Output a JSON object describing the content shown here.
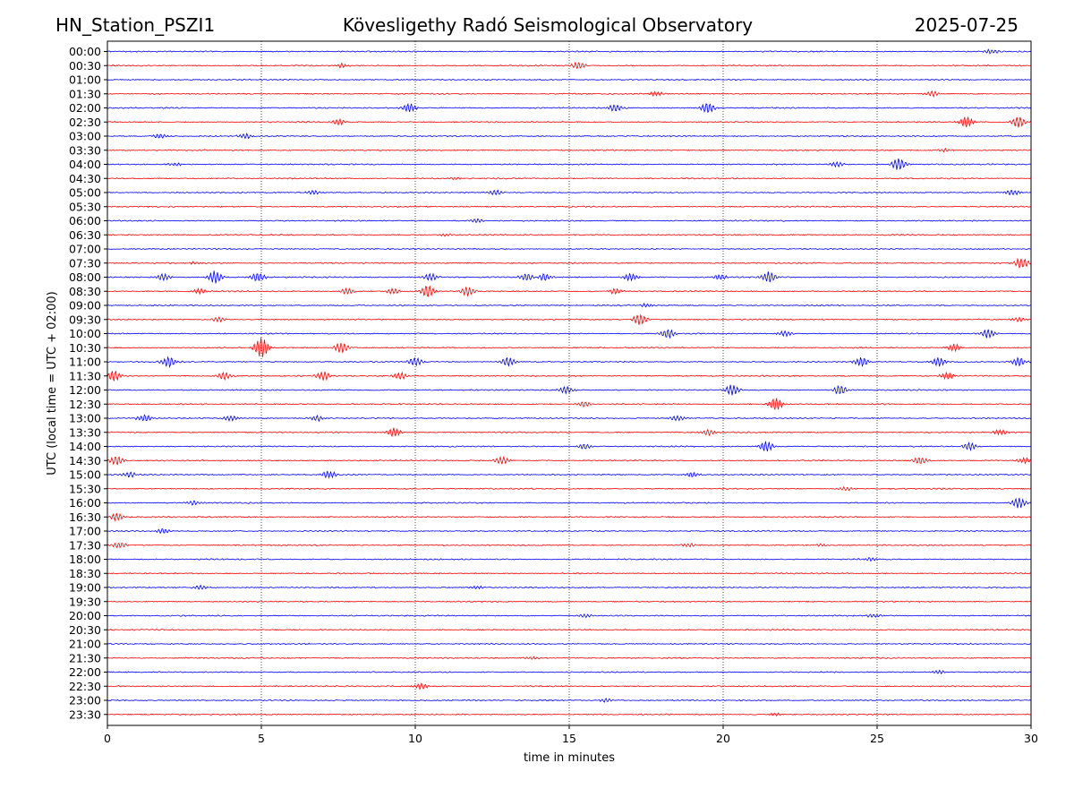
{
  "header": {
    "station": "HN_Station_PSZI1",
    "observatory": "Kövesligethy Radó Seismological Observatory",
    "date": "2025-07-25"
  },
  "chart_data": {
    "type": "line",
    "title": "Kövesligethy Radó Seismological Observatory",
    "xlabel": "time in minutes",
    "ylabel": "UTC (local time = UTC + 02:00)",
    "xlim": [
      0,
      30
    ],
    "x_ticks": [
      "0",
      "5",
      "10",
      "15",
      "20",
      "25",
      "30"
    ],
    "y_ticks": [
      "00:00",
      "00:30",
      "01:00",
      "01:30",
      "02:00",
      "02:30",
      "03:00",
      "03:30",
      "04:00",
      "04:30",
      "05:00",
      "05:30",
      "06:00",
      "06:30",
      "07:00",
      "07:30",
      "08:00",
      "08:30",
      "09:00",
      "09:30",
      "10:00",
      "10:30",
      "11:00",
      "11:30",
      "12:00",
      "12:30",
      "13:00",
      "13:30",
      "14:00",
      "14:30",
      "15:00",
      "15:30",
      "16:00",
      "16:30",
      "17:00",
      "17:30",
      "18:00",
      "18:30",
      "19:00",
      "19:30",
      "20:00",
      "20:30",
      "21:00",
      "21:30",
      "22:00",
      "22:30",
      "23:00",
      "23:30"
    ],
    "grid": "vertical dotted at 5-minute ticks",
    "colors": {
      "even_rows": "#0000ff",
      "odd_rows": "#ff0000"
    },
    "bursts": [
      {
        "row": "00:00",
        "t": 28.7,
        "a": 2.5
      },
      {
        "row": "00:30",
        "t": 15.3,
        "a": 4
      },
      {
        "row": "00:30",
        "t": 7.6,
        "a": 2
      },
      {
        "row": "01:30",
        "t": 26.8,
        "a": 3
      },
      {
        "row": "01:30",
        "t": 17.8,
        "a": 2.5
      },
      {
        "row": "02:00",
        "t": 9.8,
        "a": 5
      },
      {
        "row": "02:00",
        "t": 16.5,
        "a": 4
      },
      {
        "row": "02:00",
        "t": 19.5,
        "a": 6
      },
      {
        "row": "02:30",
        "t": 27.9,
        "a": 6
      },
      {
        "row": "02:30",
        "t": 29.6,
        "a": 6
      },
      {
        "row": "02:30",
        "t": 7.5,
        "a": 3
      },
      {
        "row": "03:00",
        "t": 1.7,
        "a": 2.5
      },
      {
        "row": "03:00",
        "t": 4.5,
        "a": 2.5
      },
      {
        "row": "03:30",
        "t": 27.2,
        "a": 1.5
      },
      {
        "row": "04:00",
        "t": 25.7,
        "a": 7
      },
      {
        "row": "04:00",
        "t": 23.7,
        "a": 3
      },
      {
        "row": "04:00",
        "t": 2.2,
        "a": 1.5
      },
      {
        "row": "04:30",
        "t": 11.3,
        "a": 1.5
      },
      {
        "row": "05:00",
        "t": 6.7,
        "a": 2.5
      },
      {
        "row": "05:00",
        "t": 12.6,
        "a": 3
      },
      {
        "row": "05:00",
        "t": 29.4,
        "a": 3
      },
      {
        "row": "06:00",
        "t": 12.0,
        "a": 2.5
      },
      {
        "row": "06:30",
        "t": 11.0,
        "a": 1.5
      },
      {
        "row": "07:30",
        "t": 29.7,
        "a": 6
      },
      {
        "row": "07:30",
        "t": 2.8,
        "a": 1.5
      },
      {
        "row": "08:00",
        "t": 3.5,
        "a": 7
      },
      {
        "row": "08:00",
        "t": 1.8,
        "a": 4
      },
      {
        "row": "08:00",
        "t": 4.9,
        "a": 5
      },
      {
        "row": "08:00",
        "t": 10.5,
        "a": 4
      },
      {
        "row": "08:00",
        "t": 14.2,
        "a": 4
      },
      {
        "row": "08:00",
        "t": 21.5,
        "a": 6
      },
      {
        "row": "08:00",
        "t": 17.0,
        "a": 4
      },
      {
        "row": "08:00",
        "t": 19.9,
        "a": 3
      },
      {
        "row": "08:00",
        "t": 13.6,
        "a": 4
      },
      {
        "row": "08:30",
        "t": 10.4,
        "a": 7
      },
      {
        "row": "08:30",
        "t": 11.7,
        "a": 5
      },
      {
        "row": "08:30",
        "t": 7.8,
        "a": 3
      },
      {
        "row": "08:30",
        "t": 3.0,
        "a": 3
      },
      {
        "row": "08:30",
        "t": 9.3,
        "a": 3
      },
      {
        "row": "08:30",
        "t": 16.5,
        "a": 3
      },
      {
        "row": "09:00",
        "t": 17.5,
        "a": 2
      },
      {
        "row": "09:30",
        "t": 17.3,
        "a": 6
      },
      {
        "row": "09:30",
        "t": 3.6,
        "a": 2.5
      },
      {
        "row": "09:30",
        "t": 29.6,
        "a": 2.5
      },
      {
        "row": "10:00",
        "t": 18.2,
        "a": 5
      },
      {
        "row": "10:00",
        "t": 28.6,
        "a": 5
      },
      {
        "row": "10:00",
        "t": 22.0,
        "a": 3
      },
      {
        "row": "10:30",
        "t": 5.0,
        "a": 11
      },
      {
        "row": "10:30",
        "t": 7.6,
        "a": 6
      },
      {
        "row": "10:30",
        "t": 27.5,
        "a": 4
      },
      {
        "row": "11:00",
        "t": 2.0,
        "a": 6
      },
      {
        "row": "11:00",
        "t": 10.0,
        "a": 5
      },
      {
        "row": "11:00",
        "t": 13.0,
        "a": 5
      },
      {
        "row": "11:00",
        "t": 24.5,
        "a": 5
      },
      {
        "row": "11:00",
        "t": 27.0,
        "a": 5
      },
      {
        "row": "11:00",
        "t": 29.6,
        "a": 5
      },
      {
        "row": "11:30",
        "t": 0.2,
        "a": 6
      },
      {
        "row": "11:30",
        "t": 7.0,
        "a": 5
      },
      {
        "row": "11:30",
        "t": 3.8,
        "a": 4
      },
      {
        "row": "11:30",
        "t": 9.5,
        "a": 4
      },
      {
        "row": "11:30",
        "t": 27.3,
        "a": 4
      },
      {
        "row": "12:00",
        "t": 20.3,
        "a": 6
      },
      {
        "row": "12:00",
        "t": 23.8,
        "a": 5
      },
      {
        "row": "12:00",
        "t": 14.9,
        "a": 4
      },
      {
        "row": "12:30",
        "t": 21.7,
        "a": 7
      },
      {
        "row": "12:30",
        "t": 15.5,
        "a": 3
      },
      {
        "row": "13:00",
        "t": 1.2,
        "a": 4
      },
      {
        "row": "13:00",
        "t": 4.0,
        "a": 3
      },
      {
        "row": "13:00",
        "t": 6.8,
        "a": 3
      },
      {
        "row": "13:00",
        "t": 18.5,
        "a": 3
      },
      {
        "row": "13:30",
        "t": 9.3,
        "a": 5
      },
      {
        "row": "13:30",
        "t": 29.0,
        "a": 3
      },
      {
        "row": "13:30",
        "t": 19.5,
        "a": 3
      },
      {
        "row": "14:00",
        "t": 21.4,
        "a": 6
      },
      {
        "row": "14:00",
        "t": 28.0,
        "a": 4
      },
      {
        "row": "14:00",
        "t": 15.5,
        "a": 3
      },
      {
        "row": "14:30",
        "t": 0.3,
        "a": 5
      },
      {
        "row": "14:30",
        "t": 12.8,
        "a": 4
      },
      {
        "row": "14:30",
        "t": 26.4,
        "a": 4
      },
      {
        "row": "14:30",
        "t": 29.8,
        "a": 3
      },
      {
        "row": "15:00",
        "t": 7.2,
        "a": 4
      },
      {
        "row": "15:00",
        "t": 19.0,
        "a": 3
      },
      {
        "row": "15:00",
        "t": 0.7,
        "a": 3
      },
      {
        "row": "15:30",
        "t": 24.0,
        "a": 2
      },
      {
        "row": "16:00",
        "t": 29.6,
        "a": 6
      },
      {
        "row": "16:00",
        "t": 2.8,
        "a": 2.5
      },
      {
        "row": "16:30",
        "t": 0.3,
        "a": 4
      },
      {
        "row": "17:00",
        "t": 1.8,
        "a": 3
      },
      {
        "row": "17:30",
        "t": 0.4,
        "a": 3
      },
      {
        "row": "17:30",
        "t": 18.9,
        "a": 2
      },
      {
        "row": "17:30",
        "t": 23.2,
        "a": 1.5
      },
      {
        "row": "18:00",
        "t": 24.8,
        "a": 2
      },
      {
        "row": "19:00",
        "t": 3.0,
        "a": 2.5
      },
      {
        "row": "19:00",
        "t": 12.0,
        "a": 2
      },
      {
        "row": "20:00",
        "t": 15.5,
        "a": 2
      },
      {
        "row": "20:00",
        "t": 24.9,
        "a": 2
      },
      {
        "row": "21:30",
        "t": 13.8,
        "a": 1.5
      },
      {
        "row": "22:00",
        "t": 27.0,
        "a": 2
      },
      {
        "row": "22:30",
        "t": 10.2,
        "a": 3.5
      },
      {
        "row": "23:00",
        "t": 16.2,
        "a": 2
      },
      {
        "row": "23:30",
        "t": 21.7,
        "a": 1.5
      }
    ]
  }
}
